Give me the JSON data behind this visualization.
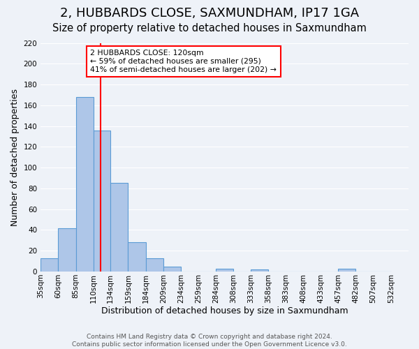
{
  "title": "2, HUBBARDS CLOSE, SAXMUNDHAM, IP17 1GA",
  "subtitle": "Size of property relative to detached houses in Saxmundham",
  "xlabel": "Distribution of detached houses by size in Saxmundham",
  "ylabel": "Number of detached properties",
  "footer_line1": "Contains HM Land Registry data © Crown copyright and database right 2024.",
  "footer_line2": "Contains public sector information licensed under the Open Government Licence v3.0.",
  "bin_labels": [
    "35sqm",
    "60sqm",
    "85sqm",
    "110sqm",
    "134sqm",
    "159sqm",
    "184sqm",
    "209sqm",
    "234sqm",
    "259sqm",
    "284sqm",
    "308sqm",
    "333sqm",
    "358sqm",
    "383sqm",
    "408sqm",
    "433sqm",
    "457sqm",
    "482sqm",
    "507sqm",
    "532sqm"
  ],
  "bin_edges": [
    35,
    60,
    85,
    110,
    134,
    159,
    184,
    209,
    234,
    259,
    284,
    308,
    333,
    358,
    383,
    408,
    433,
    457,
    482,
    507,
    532
  ],
  "bar_heights": [
    13,
    42,
    168,
    136,
    85,
    28,
    13,
    5,
    0,
    0,
    3,
    0,
    2,
    0,
    0,
    0,
    0,
    3,
    0,
    0
  ],
  "bar_color": "#aec6e8",
  "bar_edge_color": "#5b9bd5",
  "reference_line_x": 120,
  "reference_line_color": "red",
  "annotation_line1": "2 HUBBARDS CLOSE: 120sqm",
  "annotation_line2": "← 59% of detached houses are smaller (295)",
  "annotation_line3": "41% of semi-detached houses are larger (202) →",
  "ylim": [
    0,
    220
  ],
  "yticks": [
    0,
    20,
    40,
    60,
    80,
    100,
    120,
    140,
    160,
    180,
    200,
    220
  ],
  "background_color": "#eef2f8",
  "grid_color": "#ffffff",
  "title_fontsize": 13,
  "subtitle_fontsize": 10.5,
  "axis_label_fontsize": 9,
  "tick_fontsize": 7.5,
  "footer_fontsize": 6.5
}
